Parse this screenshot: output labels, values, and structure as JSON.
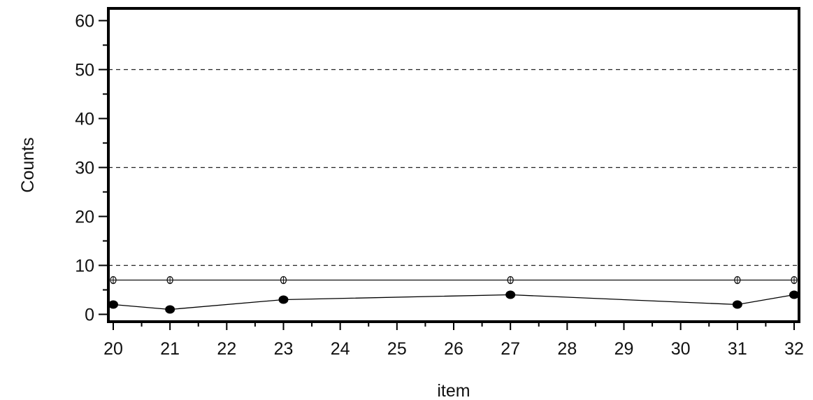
{
  "chart_data": {
    "type": "line",
    "title": "",
    "xlabel": "item",
    "ylabel": "Counts",
    "xlim": [
      20,
      32
    ],
    "ylim": [
      -1.5,
      62.5
    ],
    "x_ticks": [
      20,
      21,
      22,
      23,
      24,
      25,
      26,
      27,
      28,
      29,
      30,
      31,
      32
    ],
    "x_tick_labels": [
      "20",
      "21",
      "22",
      "23",
      "24",
      "25",
      "26",
      "27",
      "28",
      "29",
      "30",
      "31",
      "32"
    ],
    "y_ticks": [
      0,
      10,
      20,
      30,
      40,
      50,
      60
    ],
    "y_tick_labels": [
      "0",
      "10",
      "20",
      "30",
      "40",
      "50",
      "60"
    ],
    "reference_lines_y": [
      10,
      30,
      50
    ],
    "grid": false,
    "series": [
      {
        "x": [
          20,
          21,
          23,
          27,
          31,
          32
        ],
        "values": [
          7,
          7,
          7,
          7,
          7,
          7
        ],
        "marker": "open-circle-cross",
        "color": "#111111"
      },
      {
        "x": [
          20,
          21,
          23,
          27,
          31,
          32
        ],
        "values": [
          2,
          1,
          3,
          4,
          2,
          4
        ],
        "marker": "filled-circle",
        "color": "#000000"
      }
    ]
  }
}
